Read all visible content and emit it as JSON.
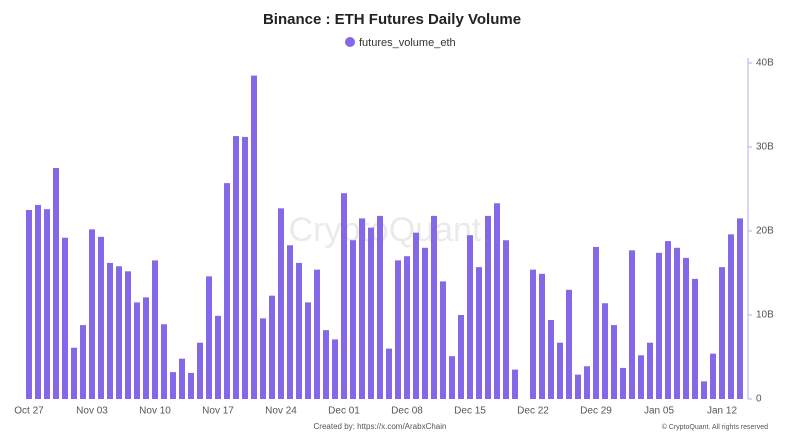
{
  "chart_data": {
    "type": "bar",
    "title": "Binance : ETH Futures Daily Volume",
    "legend": "futures_volume_eth",
    "color": "#8468e8",
    "watermark": "CryptoQuant",
    "credit": "Created by: https://x.com/ArabxChain",
    "copyright": "© CryptoQuant. All rights reserved",
    "categories": [
      "Oct 27",
      null,
      null,
      null,
      null,
      null,
      null,
      "Nov 03",
      null,
      null,
      null,
      null,
      null,
      null,
      "Nov 10",
      null,
      null,
      null,
      null,
      null,
      null,
      "Nov 17",
      null,
      null,
      null,
      null,
      null,
      null,
      "Nov 24",
      null,
      null,
      null,
      null,
      null,
      null,
      "Dec 01",
      null,
      null,
      null,
      null,
      null,
      null,
      "Dec 08",
      null,
      null,
      null,
      null,
      null,
      null,
      "Dec 15",
      null,
      null,
      null,
      null,
      null,
      null,
      "Dec 22",
      null,
      null,
      null,
      null,
      null,
      null,
      "Dec 29",
      null,
      null,
      null,
      null,
      null,
      null,
      "Jan 05",
      null,
      null,
      null,
      null,
      null,
      null,
      "Jan 12",
      null,
      null
    ],
    "values": [
      22.5,
      23.1,
      22.6,
      27.5,
      19.2,
      6.1,
      8.8,
      20.2,
      19.3,
      16.2,
      15.8,
      15.2,
      11.5,
      12.1,
      16.5,
      8.9,
      3.2,
      4.8,
      3.1,
      6.7,
      14.6,
      9.9,
      25.7,
      31.3,
      31.2,
      38.5,
      9.6,
      12.3,
      22.7,
      18.3,
      16.2,
      11.5,
      15.4,
      8.2,
      7.1,
      24.5,
      18.9,
      21.5,
      20.4,
      21.8,
      6.0,
      16.5,
      17.0,
      19.8,
      18.0,
      21.8,
      14.0,
      5.1,
      10.0,
      19.5,
      15.7,
      21.8,
      23.3,
      18.9,
      3.5,
      null,
      15.4,
      14.9,
      9.4,
      6.7,
      13.0,
      2.9,
      3.9,
      18.1,
      11.4,
      8.8,
      3.7,
      17.7,
      5.2,
      6.7,
      17.4,
      18.8,
      18.0,
      16.8,
      14.3,
      2.1,
      5.4,
      15.7,
      19.6,
      21.5
    ],
    "ylim": [
      0,
      40
    ],
    "yticks": [
      0,
      {
        "value": 10,
        "label": "10B"
      },
      {
        "value": 20,
        "label": "20B"
      },
      {
        "value": 30,
        "label": "30B"
      },
      {
        "value": 40,
        "label": "40B"
      }
    ]
  }
}
